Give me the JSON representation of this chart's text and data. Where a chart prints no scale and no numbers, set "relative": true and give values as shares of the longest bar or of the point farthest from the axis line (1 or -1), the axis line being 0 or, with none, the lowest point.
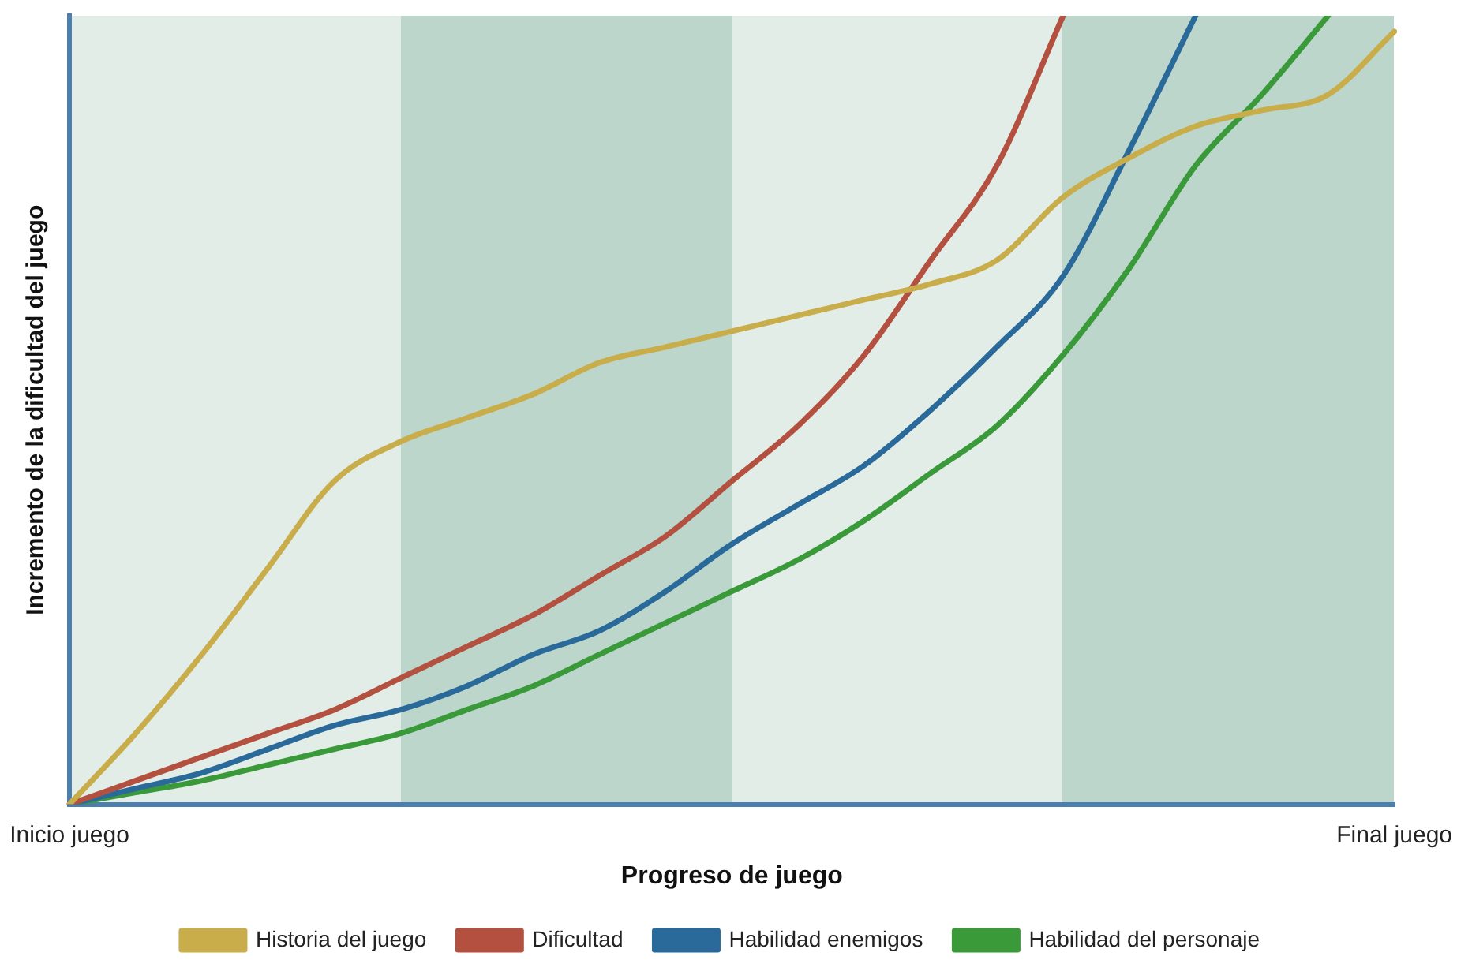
{
  "chart_data": {
    "type": "line",
    "relative": true,
    "xlabel": "Progreso de juego",
    "ylabel": "Incremento de la dificultad del juego",
    "categories": [
      "Inicio juego",
      null,
      null,
      null,
      null,
      null,
      null,
      null,
      null,
      null,
      null,
      null,
      null,
      null,
      null,
      null,
      null,
      null,
      null,
      null,
      "Final juego"
    ],
    "legend": "bottom",
    "marker": "none",
    "line_style": "solid",
    "series": [
      {
        "name": "Historia del juego",
        "color": "#c8ad4a",
        "values": [
          0,
          0.09,
          0.19,
          0.3,
          0.41,
          0.46,
          0.49,
          0.52,
          0.56,
          0.58,
          0.6,
          0.62,
          0.64,
          0.66,
          0.69,
          0.77,
          0.82,
          0.86,
          0.88,
          0.9,
          0.98
        ]
      },
      {
        "name": "Dificultad",
        "color": "#b4503f",
        "values": [
          0,
          0.03,
          0.06,
          0.09,
          0.12,
          0.16,
          0.2,
          0.24,
          0.29,
          0.34,
          0.41,
          0.48,
          0.57,
          0.69,
          0.81,
          1,
          null,
          null,
          null,
          null,
          null
        ]
      },
      {
        "name": "Habilidad enemigos",
        "color": "#2a6a9a",
        "values": [
          0,
          0.02,
          0.04,
          0.07,
          0.1,
          0.12,
          0.15,
          0.19,
          0.22,
          0.27,
          0.33,
          0.38,
          0.43,
          0.5,
          0.58,
          0.67,
          0.83,
          1,
          null,
          null,
          null
        ]
      },
      {
        "name": "Habilidad del personaje",
        "color": "#3a9a3a",
        "values": [
          0,
          0.015,
          0.03,
          0.05,
          0.07,
          0.09,
          0.12,
          0.15,
          0.19,
          0.23,
          0.27,
          0.31,
          0.36,
          0.42,
          0.48,
          0.57,
          0.68,
          0.81,
          0.9,
          1,
          null
        ]
      }
    ]
  }
}
